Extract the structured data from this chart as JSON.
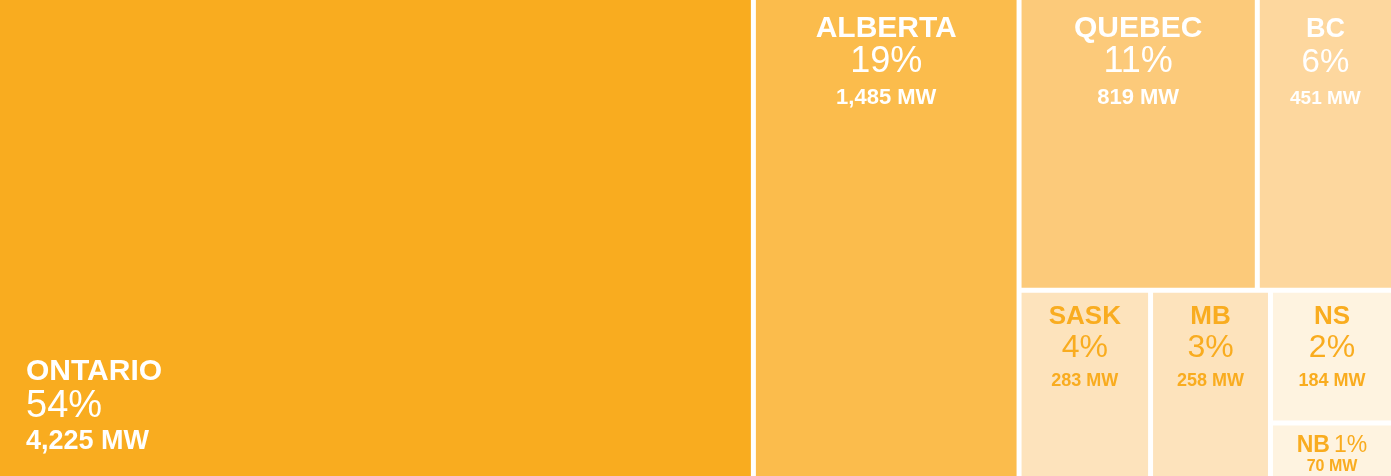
{
  "chart_data": {
    "type": "other",
    "categories": [
      "ONTARIO",
      "ALBERTA",
      "QUEBEC",
      "BC",
      "SASK",
      "MB",
      "NS",
      "NB"
    ],
    "colors": [
      "#f9ac1f",
      "#fbbc4c",
      "#fcca7a",
      "#fdd79e",
      "#fde3bc",
      "#fde3bc",
      "#fef3e0",
      "#fef3e0"
    ],
    "values": [
      4225,
      1485,
      819,
      451,
      283,
      258,
      184,
      70
    ],
    "value_labels": [
      "4,225 MW",
      "1,485 MW",
      "819 MW",
      "451 MW",
      "283 MW",
      "258 MW",
      "184 MW",
      "70 MW"
    ],
    "annotations": [
      "54%",
      "19%",
      "11%",
      "6%",
      "4%",
      "3%",
      "2%",
      "1%"
    ]
  }
}
